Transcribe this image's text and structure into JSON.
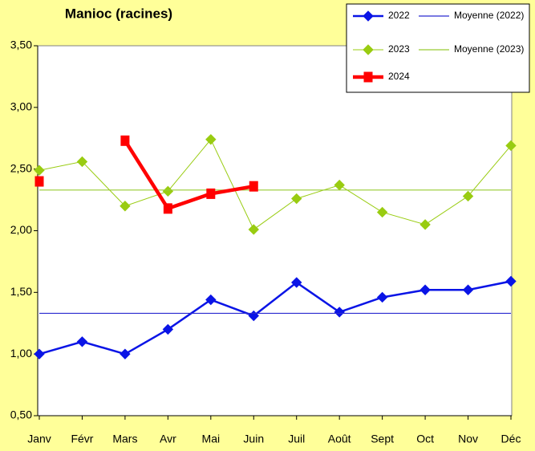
{
  "chart_data": {
    "type": "line",
    "title": "Manioc (racines)",
    "categories": [
      "Janv",
      "Févr",
      "Mars",
      "Avr",
      "Mai",
      "Juin",
      "Juil",
      "Août",
      "Sept",
      "Oct",
      "Nov",
      "Déc"
    ],
    "series": [
      {
        "name": "2022",
        "color": "#0a14e6",
        "marker": "diamond",
        "values": [
          1.0,
          1.1,
          1.0,
          1.2,
          1.44,
          1.31,
          1.58,
          1.34,
          1.46,
          1.52,
          1.52,
          1.59
        ]
      },
      {
        "name": "Moyenne (2022)",
        "color": "#2a2ad0",
        "marker": null,
        "values": [
          1.33,
          1.33,
          1.33,
          1.33,
          1.33,
          1.33,
          1.33,
          1.33,
          1.33,
          1.33,
          1.33,
          1.33
        ]
      },
      {
        "name": "2023",
        "color": "#99cc11",
        "marker": "diamond",
        "values": [
          2.49,
          2.56,
          2.2,
          2.32,
          2.74,
          2.01,
          2.26,
          2.37,
          2.15,
          2.05,
          2.28,
          2.69
        ]
      },
      {
        "name": "Moyenne (2023)",
        "color": "#99cc33",
        "marker": null,
        "values": [
          2.33,
          2.33,
          2.33,
          2.33,
          2.33,
          2.33,
          2.33,
          2.33,
          2.33,
          2.33,
          2.33,
          2.33
        ]
      },
      {
        "name": "2024",
        "color": "#ff0000",
        "marker": "square",
        "values": [
          2.4,
          null,
          2.73,
          2.18,
          2.3,
          2.36,
          null,
          null,
          null,
          null,
          null,
          null
        ]
      }
    ],
    "ylim": [
      0.5,
      3.5
    ],
    "yticks": [
      {
        "value": 0.5,
        "label": "0,50"
      },
      {
        "value": 1.0,
        "label": "1,00"
      },
      {
        "value": 1.5,
        "label": "1,50"
      },
      {
        "value": 2.0,
        "label": "2,00"
      },
      {
        "value": 2.5,
        "label": "2,50"
      },
      {
        "value": 3.0,
        "label": "3,00"
      },
      {
        "value": 3.5,
        "label": "3,50"
      }
    ],
    "grid": false,
    "legend": "top-right"
  }
}
